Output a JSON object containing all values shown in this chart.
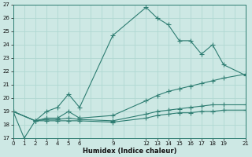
{
  "xlabel": "Humidex (Indice chaleur)",
  "background_color": "#cde8e4",
  "grid_color": "#b0d8d2",
  "line_color": "#2e7d72",
  "xlim": [
    0,
    21
  ],
  "ylim": [
    17,
    27
  ],
  "xticks": [
    0,
    1,
    2,
    3,
    4,
    5,
    6,
    9,
    12,
    13,
    14,
    15,
    16,
    17,
    18,
    19,
    21
  ],
  "yticks": [
    17,
    18,
    19,
    20,
    21,
    22,
    23,
    24,
    25,
    26,
    27
  ],
  "xgrid": [
    0,
    1,
    2,
    3,
    4,
    5,
    6,
    7,
    8,
    9,
    10,
    11,
    12,
    13,
    14,
    15,
    16,
    17,
    18,
    19,
    20,
    21
  ],
  "ygrid": [
    17,
    18,
    19,
    20,
    21,
    22,
    23,
    24,
    25,
    26,
    27
  ],
  "series": [
    {
      "x": [
        0,
        1,
        2,
        3,
        4,
        5,
        6,
        9,
        12,
        13,
        14,
        15,
        16,
        17,
        18,
        19,
        21
      ],
      "y": [
        19.0,
        17.0,
        18.3,
        19.0,
        19.3,
        20.3,
        19.3,
        24.7,
        26.8,
        26.0,
        25.5,
        24.3,
        24.3,
        23.3,
        24.0,
        22.5,
        21.7
      ]
    },
    {
      "x": [
        0,
        2,
        3,
        4,
        5,
        6,
        9,
        12,
        13,
        14,
        15,
        16,
        17,
        18,
        19,
        21
      ],
      "y": [
        19.0,
        18.3,
        18.5,
        18.5,
        19.0,
        18.5,
        18.7,
        19.8,
        20.2,
        20.5,
        20.7,
        20.9,
        21.1,
        21.3,
        21.5,
        21.8
      ]
    },
    {
      "x": [
        0,
        2,
        3,
        4,
        5,
        6,
        9,
        12,
        13,
        14,
        15,
        16,
        17,
        18,
        19,
        21
      ],
      "y": [
        19.0,
        18.3,
        18.4,
        18.4,
        18.5,
        18.4,
        18.3,
        18.8,
        19.0,
        19.1,
        19.2,
        19.3,
        19.4,
        19.5,
        19.5,
        19.5
      ]
    },
    {
      "x": [
        0,
        2,
        3,
        4,
        5,
        6,
        9,
        12,
        13,
        14,
        15,
        16,
        17,
        18,
        19,
        21
      ],
      "y": [
        19.0,
        18.3,
        18.3,
        18.3,
        18.3,
        18.3,
        18.2,
        18.5,
        18.7,
        18.8,
        18.9,
        18.9,
        19.0,
        19.0,
        19.1,
        19.1
      ]
    }
  ]
}
